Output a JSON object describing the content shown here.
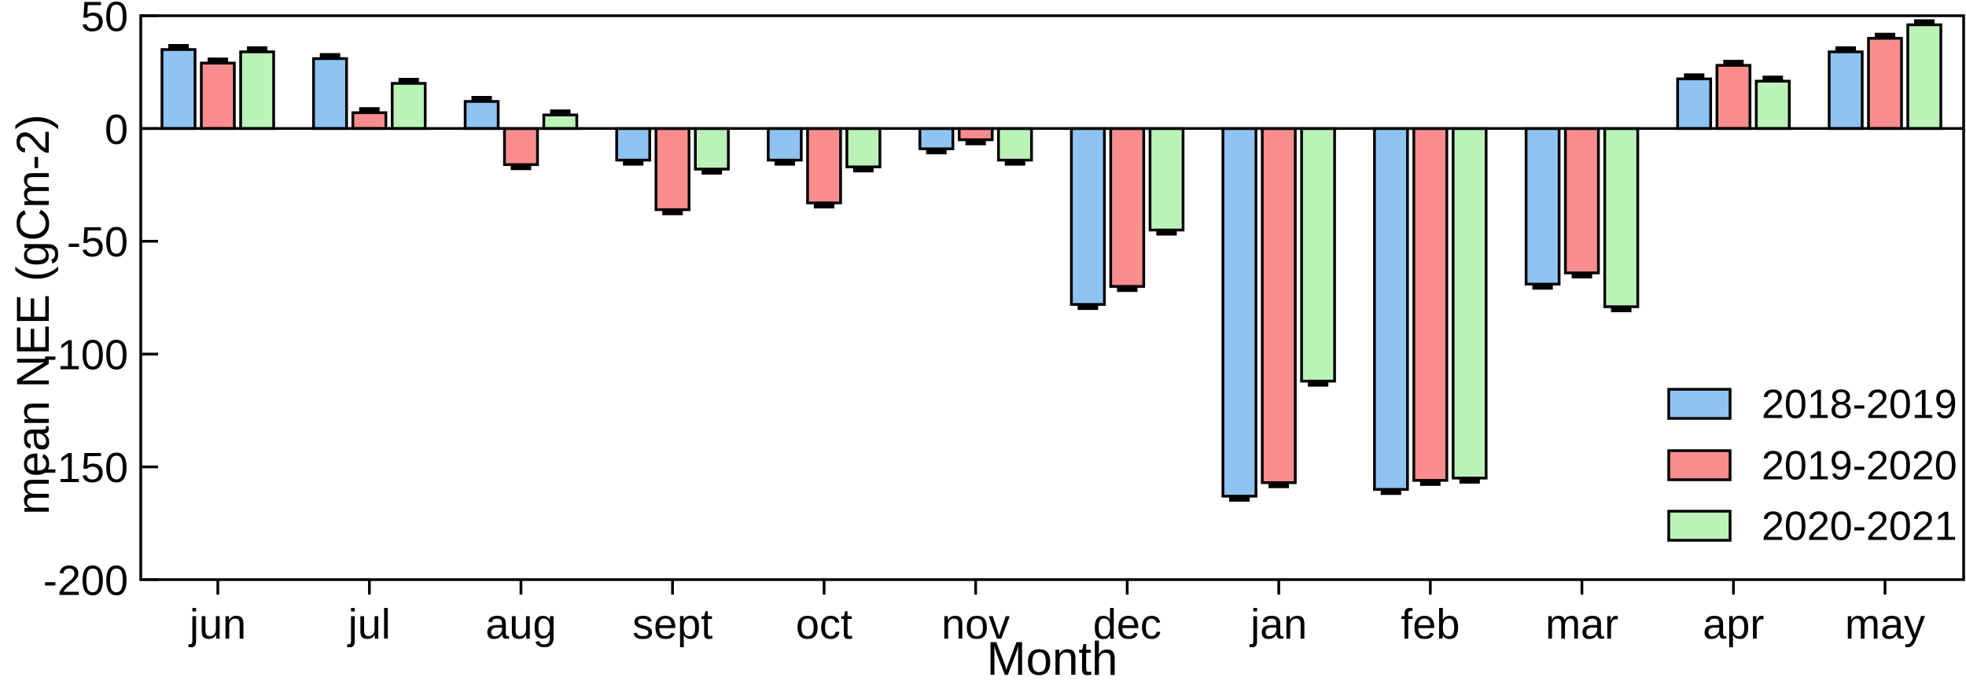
{
  "figure": {
    "background": "#ffffff"
  },
  "chart_data": {
    "type": "bar",
    "title": "",
    "xlabel": "Month",
    "ylabel": "mean NEE (gCm-2)",
    "categories": [
      "jun",
      "jul",
      "aug",
      "sept",
      "oct",
      "nov",
      "dec",
      "jan",
      "feb",
      "mar",
      "apr",
      "may"
    ],
    "series": [
      {
        "name": "2018-2019",
        "color": "#8FC3F2",
        "values": [
          35,
          31,
          12,
          -14,
          -14,
          -9,
          -78,
          -163,
          -160,
          -69,
          22,
          34
        ]
      },
      {
        "name": "2019-2020",
        "color": "#F98D8D",
        "values": [
          29,
          7,
          -16,
          -36,
          -33,
          -5,
          -70,
          -157,
          -156,
          -64,
          28,
          40
        ]
      },
      {
        "name": "2020-2021",
        "color": "#BBF2B8",
        "values": [
          34,
          20,
          6,
          -18,
          -17,
          -14,
          -45,
          -112,
          -155,
          -79,
          21,
          46
        ]
      }
    ],
    "ylim": [
      -200,
      50
    ],
    "yticks": [
      50,
      0,
      -50,
      -100,
      -150,
      -200
    ],
    "ytick_labels": [
      "50",
      "0",
      "-50",
      "-100",
      "-150",
      "-200"
    ],
    "error_bars": true,
    "grid": false,
    "legend_position": "lower-right",
    "bar_outline_color": "#000000",
    "axis_color": "#000000"
  }
}
